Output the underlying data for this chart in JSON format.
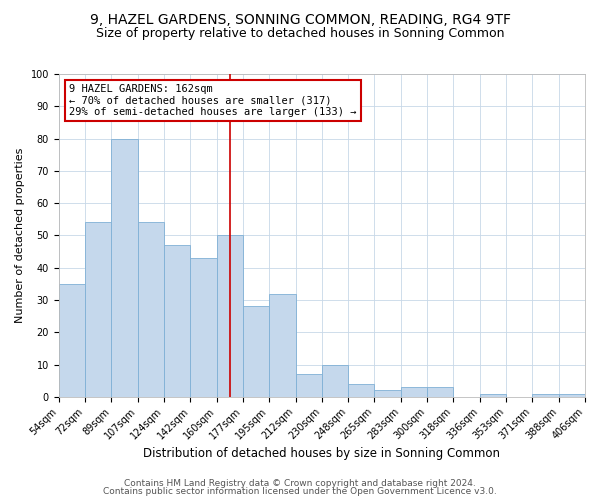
{
  "title": "9, HAZEL GARDENS, SONNING COMMON, READING, RG4 9TF",
  "subtitle": "Size of property relative to detached houses in Sonning Common",
  "xlabel": "Distribution of detached houses by size in Sonning Common",
  "ylabel": "Number of detached properties",
  "bar_values": [
    35,
    54,
    80,
    54,
    47,
    43,
    50,
    28,
    32,
    7,
    10,
    4,
    2,
    3,
    3,
    0,
    1,
    0,
    1,
    1
  ],
  "bar_labels": [
    "54sqm",
    "72sqm",
    "89sqm",
    "107sqm",
    "124sqm",
    "142sqm",
    "160sqm",
    "177sqm",
    "195sqm",
    "212sqm",
    "230sqm",
    "248sqm",
    "265sqm",
    "283sqm",
    "300sqm",
    "318sqm",
    "336sqm",
    "353sqm",
    "371sqm",
    "388sqm",
    "406sqm"
  ],
  "bar_color": "#c5d8ec",
  "bar_edge_color": "#7fb0d5",
  "redline_x": 6.5,
  "annotation_title": "9 HAZEL GARDENS: 162sqm",
  "annotation_line1": "← 70% of detached houses are smaller (317)",
  "annotation_line2": "29% of semi-detached houses are larger (133) →",
  "annotation_box_color": "#ffffff",
  "annotation_box_edge": "#cc0000",
  "ylim": [
    0,
    100
  ],
  "yticks": [
    0,
    10,
    20,
    30,
    40,
    50,
    60,
    70,
    80,
    90,
    100
  ],
  "footer1": "Contains HM Land Registry data © Crown copyright and database right 2024.",
  "footer2": "Contains public sector information licensed under the Open Government Licence v3.0.",
  "title_fontsize": 10,
  "subtitle_fontsize": 9,
  "xlabel_fontsize": 8.5,
  "ylabel_fontsize": 8,
  "tick_fontsize": 7,
  "footer_fontsize": 6.5,
  "grid_color": "#c8d8e8"
}
